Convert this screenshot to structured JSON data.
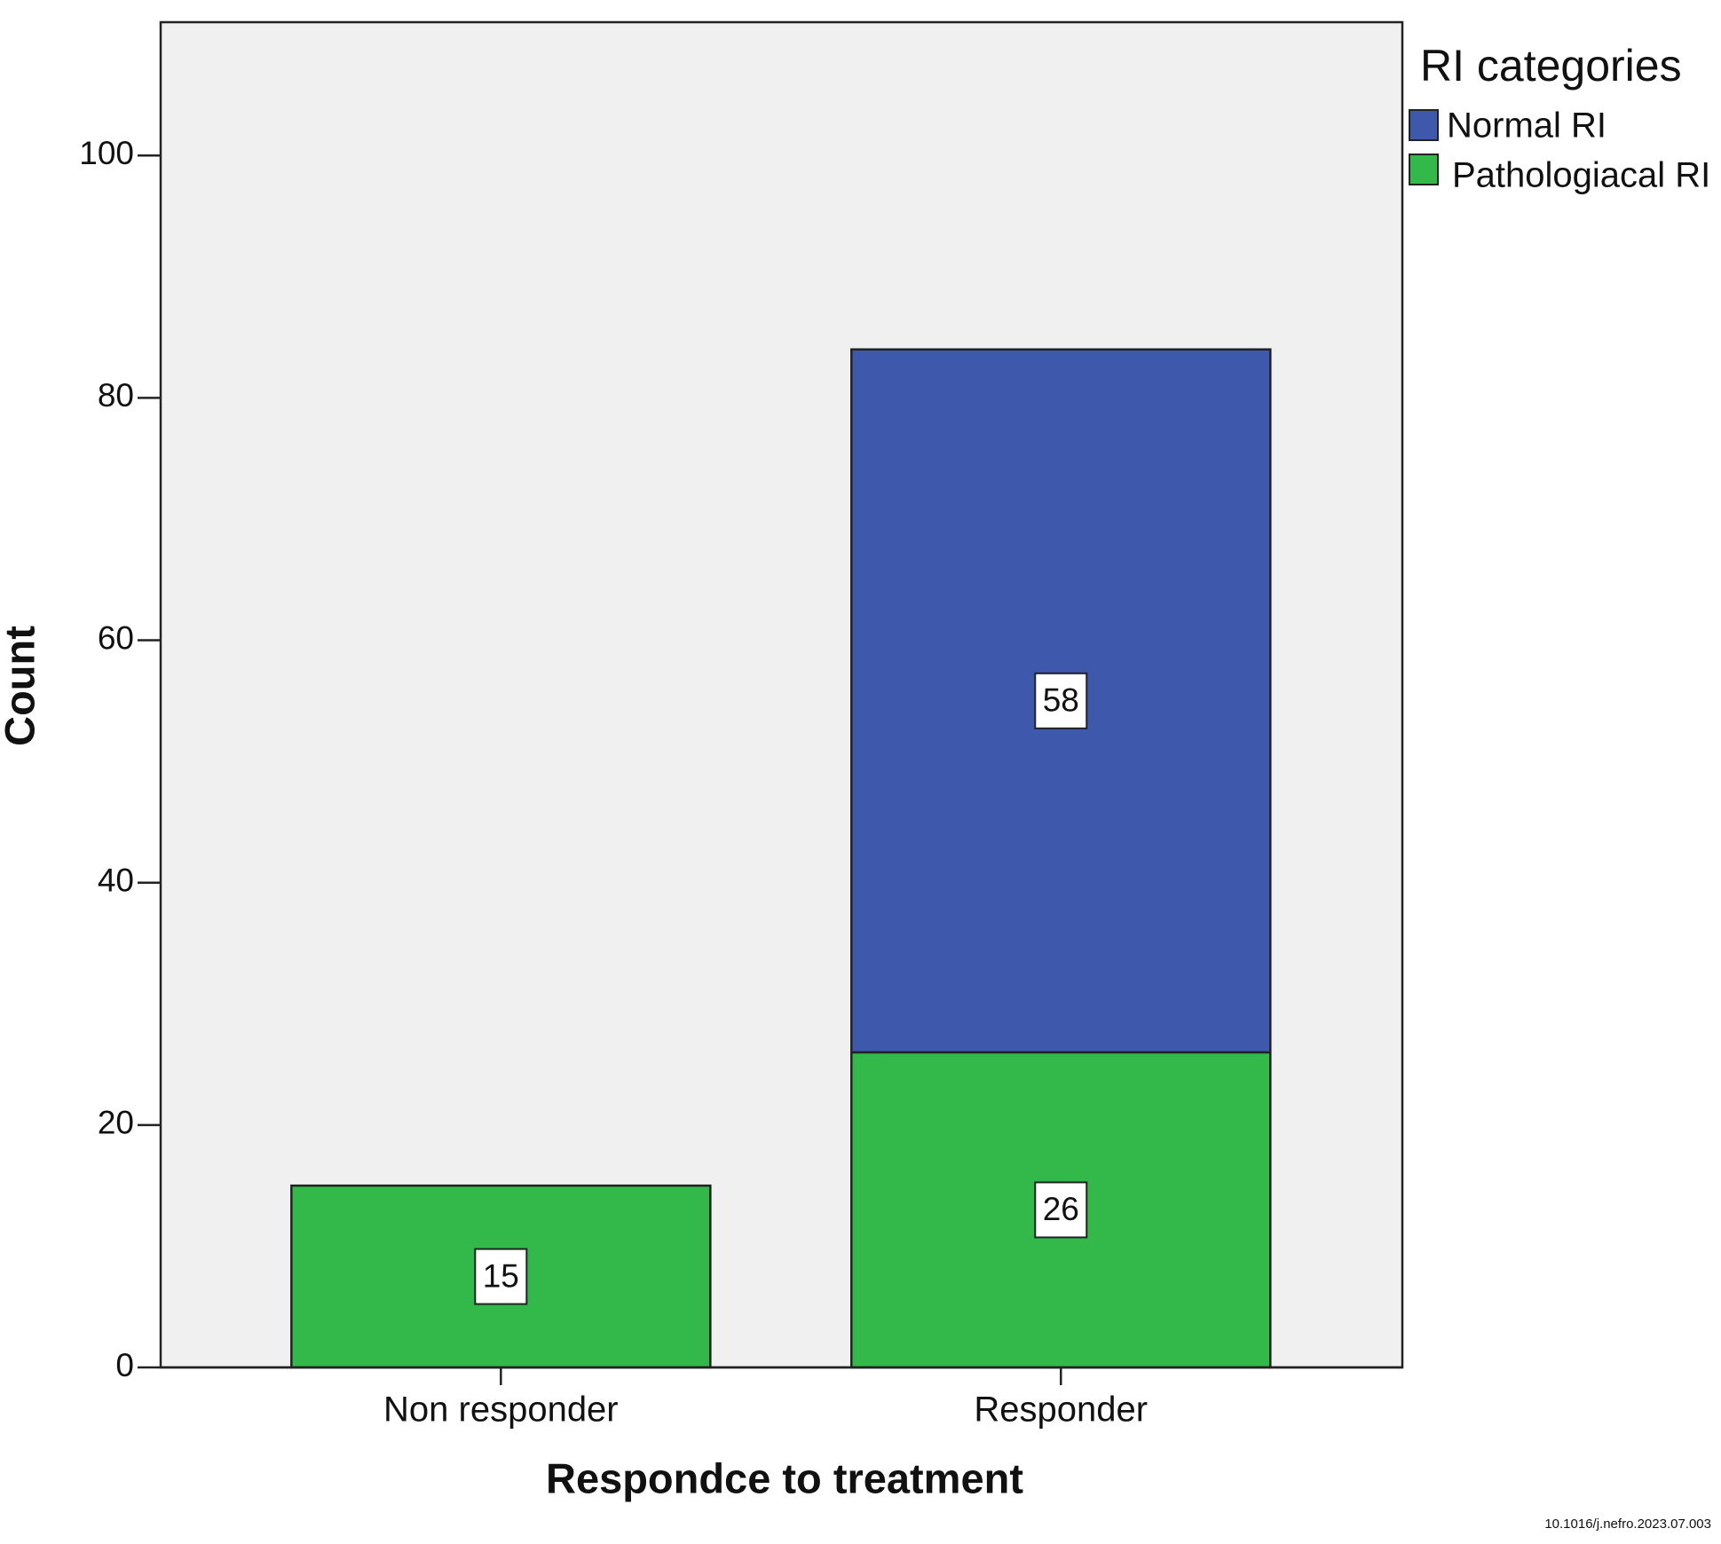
{
  "chart_data": {
    "type": "stacked_bar",
    "x_label": "Respondce to treatment",
    "y_label": "Count",
    "categories": [
      "Non responder",
      "Responder"
    ],
    "series": [
      {
        "name": "Normal RI",
        "color": "#3e58ac",
        "values": [
          null,
          58
        ]
      },
      {
        "name": "Pathologiacal RI",
        "color": "#33b94a",
        "values": [
          15,
          26
        ]
      }
    ],
    "legend_title": "RI categories",
    "legend": "right",
    "ylim": [
      0,
      111
    ],
    "yticks": [
      0,
      20,
      40,
      60,
      80,
      100
    ],
    "footnote": "10.1016/j.nefro.2023.07.003"
  }
}
